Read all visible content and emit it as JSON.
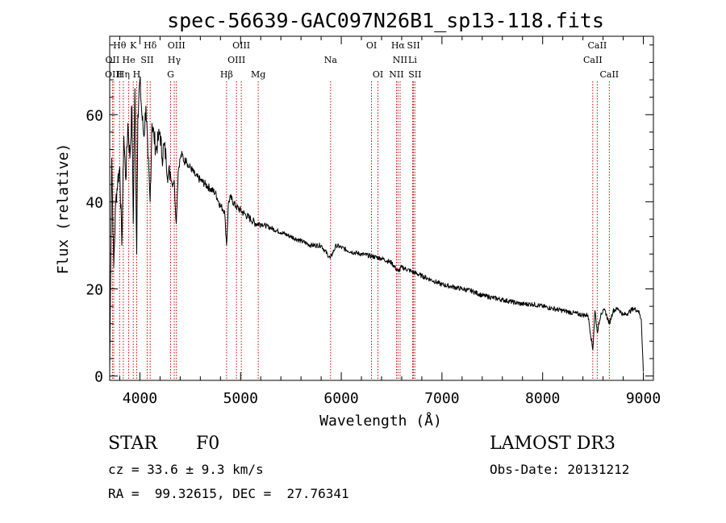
{
  "chart_data": {
    "type": "line",
    "title": "spec-56639-GAC097N26B1_sp13-118.fits",
    "xlabel": "Wavelength (Å)",
    "ylabel": "Flux (relative)",
    "xlim": [
      3700,
      9100
    ],
    "ylim": [
      -1,
      78
    ],
    "x_ticks": [
      4000,
      5000,
      6000,
      7000,
      8000,
      9000
    ],
    "y_ticks": [
      0,
      20,
      40,
      60
    ],
    "series": [
      {
        "name": "flux",
        "x": [
          3700,
          3720,
          3740,
          3760,
          3780,
          3800,
          3820,
          3840,
          3860,
          3880,
          3900,
          3920,
          3934,
          3950,
          3968,
          3980,
          4000,
          4020,
          4040,
          4060,
          4080,
          4101,
          4120,
          4140,
          4160,
          4180,
          4200,
          4220,
          4240,
          4260,
          4280,
          4300,
          4320,
          4340,
          4361,
          4380,
          4400,
          4420,
          4440,
          4460,
          4480,
          4500,
          4550,
          4600,
          4650,
          4700,
          4750,
          4800,
          4840,
          4861,
          4880,
          4900,
          4950,
          5000,
          5050,
          5100,
          5150,
          5200,
          5300,
          5400,
          5500,
          5600,
          5700,
          5800,
          5890,
          5950,
          6000,
          6100,
          6200,
          6300,
          6400,
          6500,
          6563,
          6600,
          6700,
          6800,
          6900,
          7000,
          7100,
          7200,
          7300,
          7400,
          7500,
          7600,
          7700,
          7800,
          7900,
          8000,
          8100,
          8200,
          8300,
          8400,
          8450,
          8498,
          8520,
          8542,
          8580,
          8620,
          8662,
          8700,
          8750,
          8800,
          8850,
          8900,
          8950,
          8980,
          9000
        ],
        "y": [
          1,
          50,
          25,
          40,
          45,
          48,
          30,
          55,
          45,
          58,
          50,
          62,
          35,
          66,
          28,
          60,
          68,
          60,
          55,
          62,
          50,
          40,
          58,
          55,
          52,
          54,
          56,
          50,
          53,
          50,
          46,
          47,
          44,
          45,
          35,
          47,
          50,
          51,
          49,
          50,
          48,
          48,
          46,
          45,
          44,
          43,
          42,
          39,
          38,
          30,
          40,
          41,
          39,
          38,
          37,
          36,
          35,
          35,
          34,
          33,
          32,
          31,
          30,
          30,
          27,
          30,
          29.5,
          28.5,
          28,
          27.5,
          27,
          26,
          24,
          25,
          24,
          23,
          22,
          21,
          20.5,
          20,
          19.5,
          18.5,
          18,
          17.5,
          17,
          16.5,
          16.5,
          16,
          15.5,
          15,
          14.5,
          14,
          14,
          6,
          15,
          10,
          14.5,
          15,
          12,
          15,
          15.5,
          14,
          14.5,
          15.5,
          15,
          13,
          1
        ]
      }
    ],
    "lines": [
      {
        "name": "Hθ",
        "wl": 3798,
        "row": 0
      },
      {
        "name": "OII",
        "wl": 3727,
        "row": 1
      },
      {
        "name": "OIII",
        "wl": 3740,
        "row": 2
      },
      {
        "name": "He",
        "wl": 3889,
        "row": 1
      },
      {
        "name": "Hη",
        "wl": 3835,
        "row": 2
      },
      {
        "name": "K",
        "wl": 3934,
        "row": 0
      },
      {
        "name": "SII",
        "wl": 4072,
        "row": 1
      },
      {
        "name": "H",
        "wl": 3968,
        "row": 2
      },
      {
        "name": "Hδ",
        "wl": 4102,
        "row": 0
      },
      {
        "name": "OIII",
        "wl": 4363,
        "row": 0
      },
      {
        "name": "Hγ",
        "wl": 4341,
        "row": 1
      },
      {
        "name": "G",
        "wl": 4305,
        "row": 2
      },
      {
        "name": "OIII",
        "wl": 5007,
        "row": 0
      },
      {
        "name": "OIII",
        "wl": 4959,
        "row": 1
      },
      {
        "name": "Hβ",
        "wl": 4861,
        "row": 2
      },
      {
        "name": "Mg",
        "wl": 5175,
        "row": 2
      },
      {
        "name": "Na",
        "wl": 5894,
        "row": 1
      },
      {
        "name": "OI",
        "wl": 6300,
        "row": 0
      },
      {
        "name": "OI",
        "wl": 6364,
        "row": 2
      },
      {
        "name": "Hα",
        "wl": 6563,
        "row": 0
      },
      {
        "name": "NII",
        "wl": 6584,
        "row": 1
      },
      {
        "name": "NII",
        "wl": 6548,
        "row": 2
      },
      {
        "name": "SII",
        "wl": 6717,
        "row": 0
      },
      {
        "name": "Li",
        "wl": 6708,
        "row": 1
      },
      {
        "name": "SII",
        "wl": 6731,
        "row": 2
      },
      {
        "name": "CaII",
        "wl": 8542,
        "row": 0
      },
      {
        "name": "CaII",
        "wl": 8498,
        "row": 1
      },
      {
        "name": "CaII",
        "wl": 8662,
        "row": 2
      }
    ]
  },
  "info": {
    "obj_class": "STAR",
    "obj_subclass": "F0",
    "survey": "LAMOST DR3",
    "cz": "cz = 33.6 ± 9.3 km/s",
    "obs_date": "Obs-Date: 20131212",
    "radec": "RA =  99.32615, DEC =  27.76341"
  }
}
